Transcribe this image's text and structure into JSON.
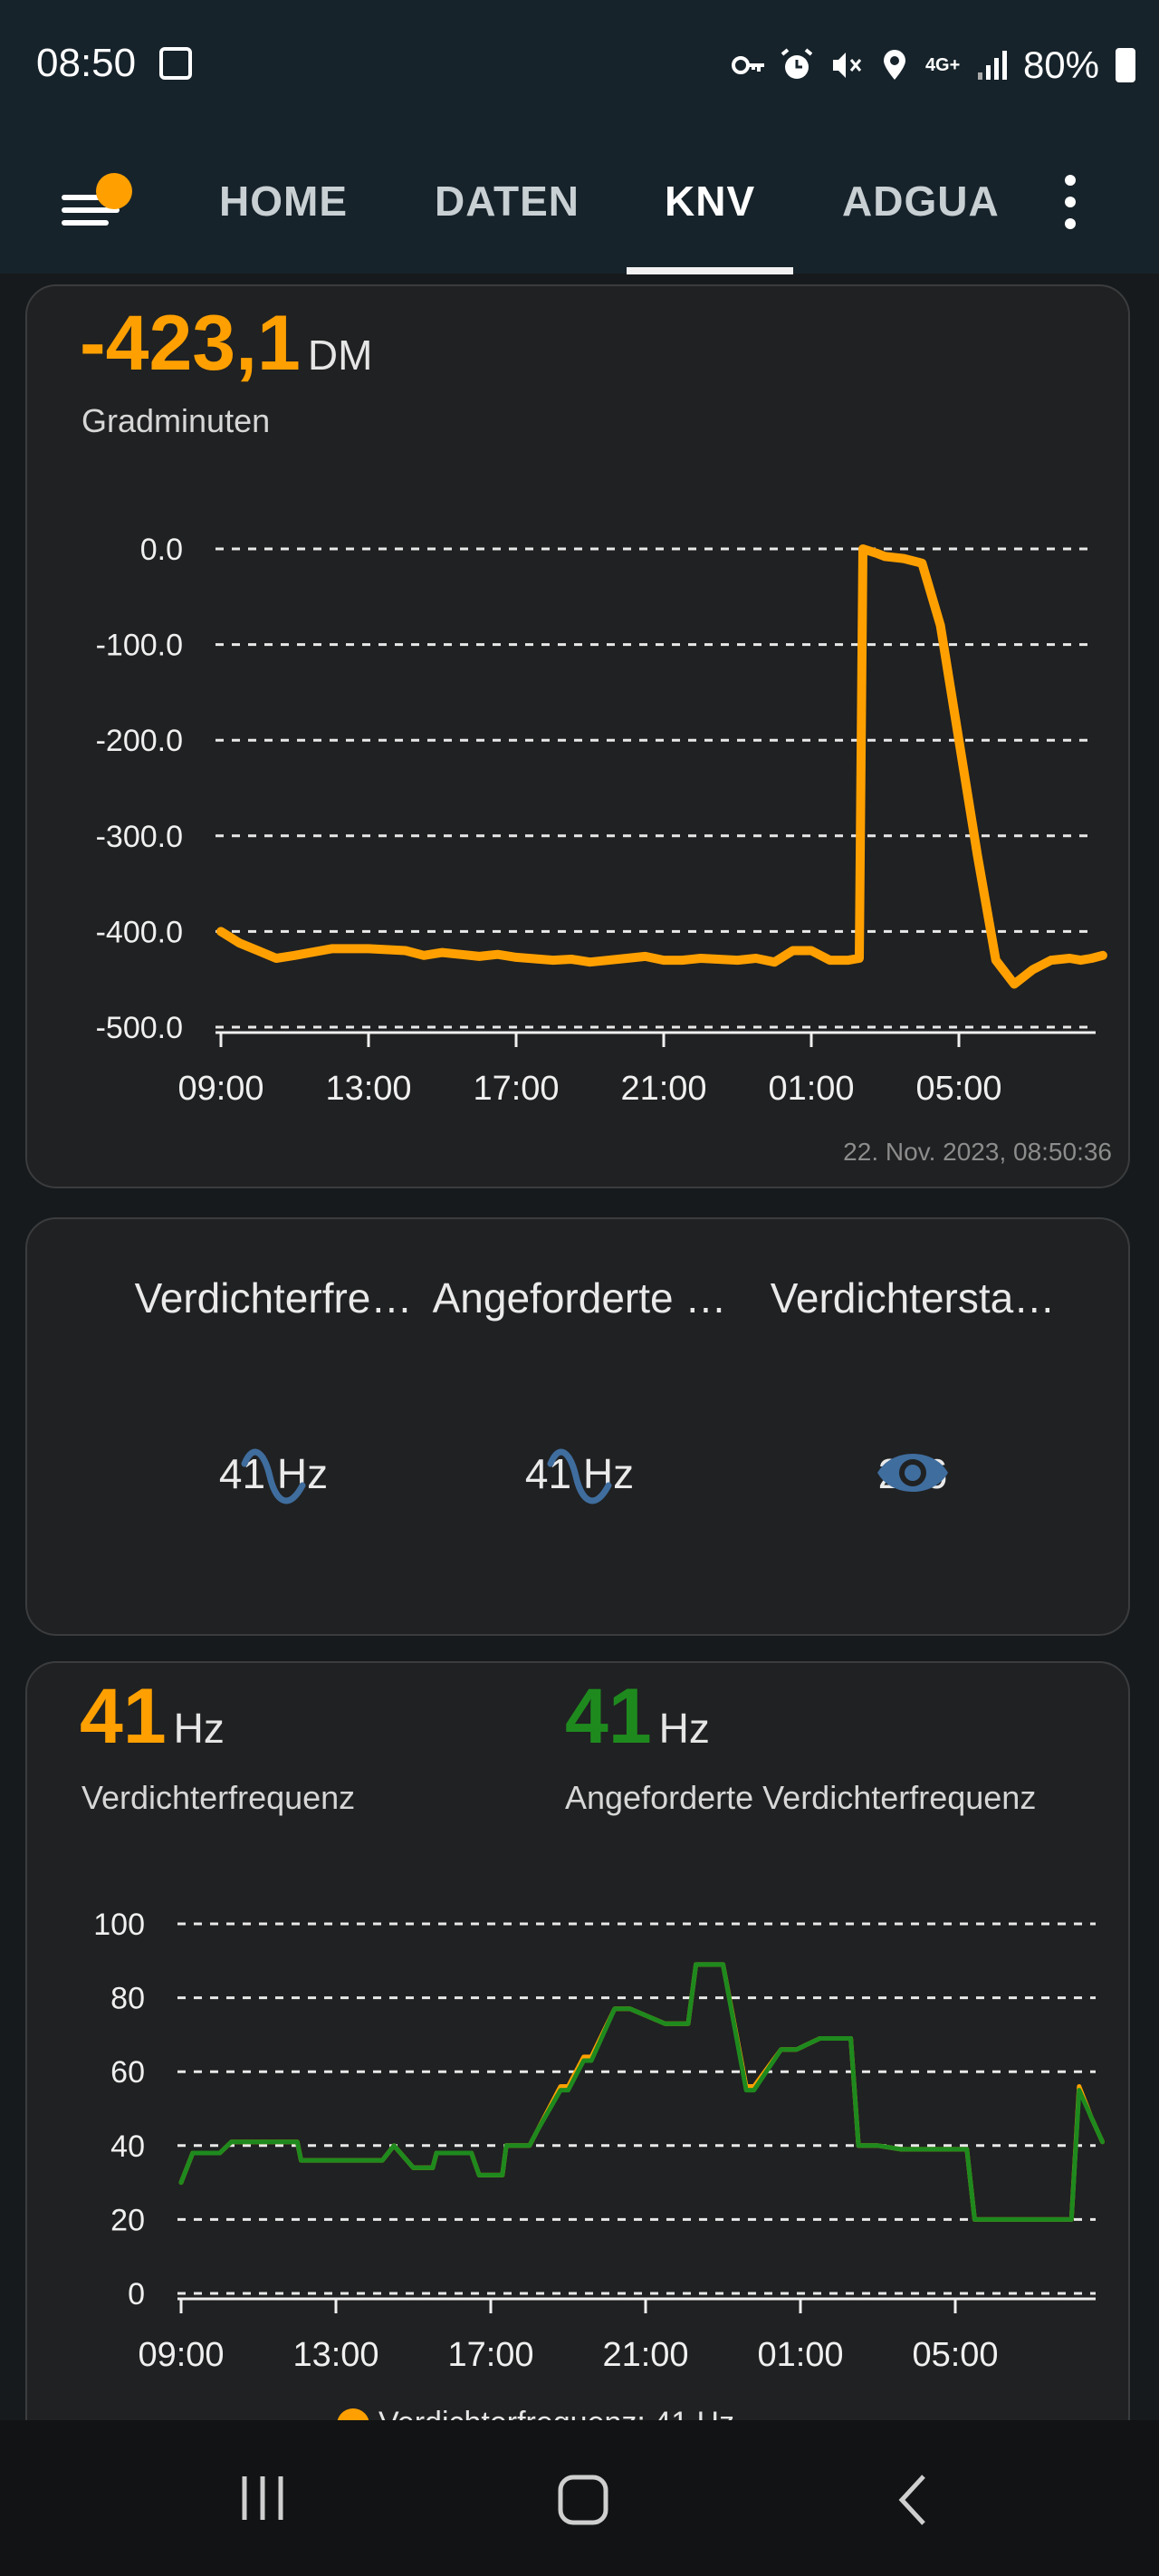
{
  "status_bar": {
    "time": "08:50",
    "network": "4G+",
    "battery": "80%",
    "icons": [
      "image-icon",
      "key-icon",
      "alarm-icon",
      "mute-icon",
      "location-icon",
      "network-icon",
      "signal-icon",
      "battery-icon"
    ]
  },
  "nav": {
    "tabs": [
      {
        "label": "HOME",
        "active": false
      },
      {
        "label": "DATEN",
        "active": false
      },
      {
        "label": "KNV",
        "active": true
      },
      {
        "label": "ADGUA",
        "active": false
      }
    ],
    "accent_color": "#ffa000"
  },
  "card1": {
    "value": "-423,1",
    "unit": "DM",
    "label": "Gradminuten",
    "timestamp": "22. Nov. 2023, 08:50:36"
  },
  "card2": {
    "stats": [
      {
        "label": "Verdichterfre…",
        "icon": "wave-icon",
        "value": "41 Hz"
      },
      {
        "label": "Angeforderte …",
        "icon": "wave-icon",
        "value": "41 Hz"
      },
      {
        "label": "Verdichtersta…",
        "icon": "eye-icon",
        "value": "226"
      }
    ]
  },
  "card3": {
    "primary": {
      "value": "41",
      "unit": "Hz",
      "label": "Verdichterfrequenz",
      "color": "#ffa000"
    },
    "secondary": {
      "value": "41",
      "unit": "Hz",
      "label": "Angeforderte Verdichterfrequenz",
      "color": "#1e8a1e"
    },
    "legend_partial": "Verdichterfrequenz: 41 Hz"
  },
  "chart_data": [
    {
      "type": "line",
      "x_ticks": [
        "09:00",
        "13:00",
        "17:00",
        "21:00",
        "01:00",
        "05:00"
      ],
      "y_ticks": [
        "0.0",
        "-100.0",
        "-200.0",
        "-300.0",
        "-400.0",
        "-500.0"
      ],
      "ylim": [
        -500,
        0
      ],
      "grid": true,
      "series": [
        {
          "color": "#ffa000",
          "x_hours": [
            0,
            0.5,
            1,
            1.5,
            2,
            3,
            4,
            5,
            5.5,
            6,
            7,
            7.5,
            8,
            9,
            9.5,
            10,
            11,
            11.5,
            12,
            12.5,
            13,
            14,
            14.5,
            15,
            15.5,
            16,
            16.5,
            17,
            17.3,
            17.4,
            17.8,
            18,
            18.5,
            19,
            19.5,
            20,
            20.5,
            21,
            21.5,
            22,
            22.5,
            23,
            23.3,
            23.6,
            23.9
          ],
          "values": [
            -400,
            -412,
            -420,
            -428,
            -425,
            -418,
            -418,
            -420,
            -425,
            -422,
            -426,
            -424,
            -427,
            -430,
            -429,
            -432,
            -428,
            -426,
            -430,
            -430,
            -428,
            -430,
            -428,
            -432,
            -420,
            -420,
            -430,
            -430,
            -428,
            0,
            -5,
            -8,
            -10,
            -15,
            -80,
            -200,
            -320,
            -430,
            -455,
            -440,
            -430,
            -428,
            -430,
            -428,
            -425
          ]
        }
      ]
    },
    {
      "type": "line",
      "x_ticks": [
        "09:00",
        "13:00",
        "17:00",
        "21:00",
        "01:00",
        "05:00"
      ],
      "y_ticks": [
        "100",
        "80",
        "60",
        "40",
        "20",
        "0"
      ],
      "ylim": [
        0,
        100
      ],
      "grid": true,
      "series": [
        {
          "name": "Angeforderte Verdichterfrequenz",
          "color": "#1e8a1e",
          "x_hours": [
            0,
            0.3,
            1,
            1.3,
            2,
            3,
            3.1,
            5.2,
            5.5,
            6,
            6.5,
            6.6,
            7.5,
            7.7,
            8.3,
            8.4,
            9,
            9.2,
            9.8,
            10,
            10.4,
            10.6,
            11.2,
            11.5,
            11.6,
            12.5,
            13.1,
            13.3,
            13.8,
            14,
            14.6,
            14.8,
            15.5,
            15.6,
            15.9,
            16.5,
            16.6,
            17.3,
            17.5,
            18,
            18.6,
            18.8,
            20.3,
            20.5,
            21.2,
            21.5,
            22.7,
            22.9,
            23,
            23.2,
            23.5,
            23.8
          ],
          "values": [
            30,
            38,
            38,
            41,
            41,
            41,
            36,
            36,
            40,
            34,
            34,
            38,
            38,
            32,
            32,
            40,
            40,
            44,
            55,
            55,
            63,
            63,
            77,
            77,
            77,
            73,
            73,
            89,
            89,
            89,
            55,
            55,
            66,
            66,
            66,
            69,
            69,
            69,
            40,
            40,
            39,
            39,
            39,
            20,
            20,
            20,
            20,
            20,
            20,
            55,
            48,
            41
          ]
        },
        {
          "name": "Verdichterfrequenz",
          "color": "#ffa000",
          "x_hours": [
            0,
            0.3,
            1,
            1.3,
            2,
            3,
            3.1,
            5.2,
            5.5,
            6,
            6.5,
            6.6,
            7.5,
            7.7,
            8.3,
            8.4,
            9,
            9.2,
            9.8,
            10,
            10.4,
            10.6,
            11.2,
            11.5,
            11.6,
            12.5,
            13.1,
            13.3,
            13.8,
            14,
            14.6,
            14.8,
            15.5,
            15.6,
            15.9,
            16.5,
            16.6,
            17.3,
            17.5,
            18,
            18.6,
            18.8,
            20.3,
            20.5,
            21.2,
            21.5,
            22.7,
            22.9,
            23,
            23.2,
            23.5,
            23.8
          ],
          "values": [
            30,
            38,
            38,
            41,
            41,
            41,
            36,
            36,
            40,
            34,
            34,
            38,
            38,
            32,
            32,
            40,
            40,
            44,
            56,
            56,
            64,
            64,
            77,
            77,
            77,
            73,
            73,
            89,
            89,
            89,
            56,
            56,
            66,
            66,
            66,
            69,
            69,
            69,
            40,
            40,
            39,
            39,
            39,
            20,
            20,
            20,
            20,
            20,
            20,
            56,
            48,
            41
          ]
        }
      ]
    }
  ]
}
